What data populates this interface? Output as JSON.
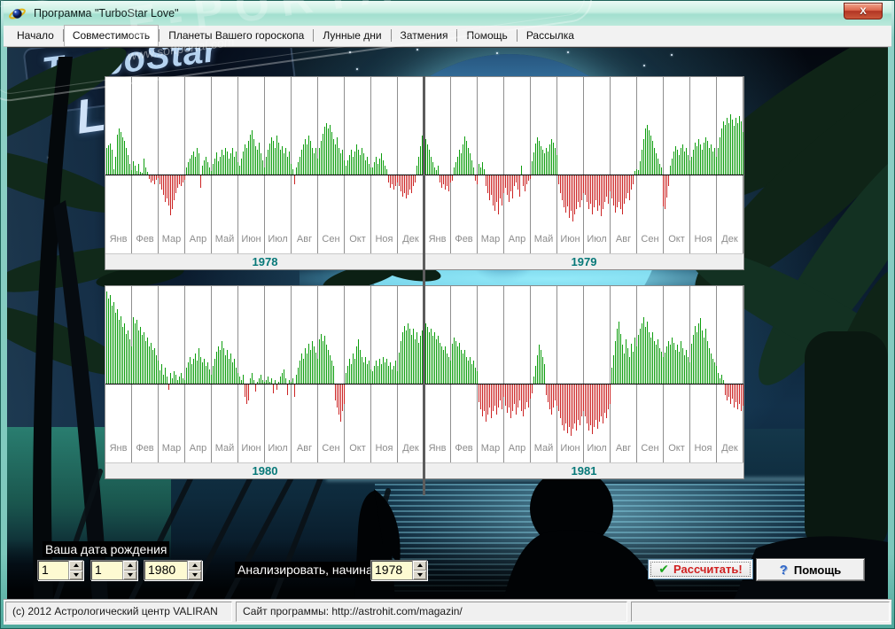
{
  "window": {
    "title": "Программа \"TurboStar Love\"",
    "close_glyph": "X"
  },
  "tabs": [
    {
      "id": "nachalo",
      "label": "Начало",
      "active": false
    },
    {
      "id": "sovmestimost",
      "label": "Совместимость",
      "active": true
    },
    {
      "id": "planety-goroskopa",
      "label": "Планеты Вашего гороскопа",
      "active": false
    },
    {
      "id": "lunnye-dni",
      "label": "Лунные дни",
      "active": false
    },
    {
      "id": "zatmeniya",
      "label": "Затмения",
      "active": false
    },
    {
      "id": "pomoshch",
      "label": "Помощь",
      "active": false
    },
    {
      "id": "rassylka",
      "label": "Рассылка",
      "active": false
    }
  ],
  "logo": {
    "line1": "TurboStar",
    "line2": "Love"
  },
  "watermark": {
    "stamp": "E-PORTAL",
    "site": "www.softportal.com"
  },
  "controls": {
    "birth_label": "Ваша дата рождения",
    "birth_day": "1",
    "birth_month": "1",
    "birth_year": "1980",
    "analyze_label": "Анализировать, начиная с",
    "analyze_year": "1978",
    "calc_button": {
      "label": "Рассчитать!",
      "icon_glyph": "✔"
    },
    "help_button": {
      "label": "Помощь",
      "icon_glyph": "?"
    }
  },
  "statusbar": {
    "left": "(c) 2012 Астрологический центр VALIRAN",
    "right": "Сайт программы:  http://astrohit.com/magazin/"
  },
  "chart_data": {
    "type": "bar",
    "description": "Daily compatibility index; green bars above baseline = positive days, red bars below = negative days. Values are bar heights in px relative to zero baseline (approx. read from pixels).",
    "months": [
      "Янв",
      "Фев",
      "Мар",
      "Апр",
      "Май",
      "Июн",
      "Июл",
      "Авг",
      "Сен",
      "Окт",
      "Ноя",
      "Дек"
    ],
    "panels": [
      [
        "1978",
        "1979"
      ],
      [
        "1980",
        "1981"
      ]
    ],
    "colors": {
      "positive": "#0e9e0e",
      "negative": "#cc2424",
      "year_label": "#067878"
    },
    "values": {
      "1978": [
        [
          30,
          33,
          35,
          28,
          6,
          20,
          45,
          52,
          48,
          42,
          38,
          30,
          22,
          12,
          5
        ],
        [
          15,
          10,
          4,
          12,
          3,
          2,
          18,
          8,
          3,
          -4,
          -8,
          -6,
          -10,
          -5,
          -3
        ],
        [
          -10,
          -16,
          -22,
          -30,
          -26,
          -34,
          -45,
          -38,
          -28,
          -20,
          -14,
          -10,
          -12,
          -8,
          -5
        ],
        [
          8,
          14,
          18,
          22,
          26,
          20,
          30,
          24,
          -14,
          10,
          16,
          20,
          14,
          8,
          4
        ],
        [
          12,
          18,
          25,
          15,
          20,
          28,
          22,
          30,
          26,
          18,
          24,
          30,
          20,
          26,
          14
        ],
        [
          10,
          18,
          26,
          34,
          30,
          38,
          45,
          50,
          40,
          32,
          28,
          36,
          24,
          16,
          8
        ],
        [
          20,
          28,
          35,
          42,
          38,
          30,
          44,
          36,
          28,
          32,
          24,
          30,
          20,
          26,
          12
        ],
        [
          6,
          -10,
          8,
          14,
          20,
          28,
          34,
          40,
          34,
          44,
          38,
          30,
          24,
          30,
          18
        ],
        [
          30,
          38,
          46,
          54,
          58,
          52,
          56,
          48,
          40,
          34,
          42,
          30,
          24,
          28,
          16
        ],
        [
          10,
          16,
          22,
          28,
          20,
          26,
          34,
          28,
          22,
          30,
          24,
          16,
          20,
          12,
          8
        ],
        [
          8,
          14,
          20,
          12,
          18,
          24,
          16,
          10,
          6,
          -8,
          -14,
          -10,
          -16,
          -12,
          -8
        ],
        [
          -12,
          -18,
          -24,
          -20,
          -26,
          -22,
          -16,
          -20,
          -12,
          -8,
          10,
          20,
          32,
          44,
          50
        ]
      ],
      "1979": [
        [
          40,
          34,
          28,
          20,
          14,
          8,
          5,
          10,
          -8,
          -14,
          -10,
          -16,
          -12,
          -18,
          -8
        ],
        [
          -6,
          8,
          14,
          20,
          28,
          24,
          34,
          43,
          38,
          30,
          24,
          16,
          8,
          -6,
          -10
        ],
        [
          12,
          8,
          14,
          6,
          -12,
          -20,
          -28,
          -22,
          -34,
          -40,
          -30,
          -44,
          -26,
          -34,
          -20
        ],
        [
          -14,
          -22,
          -30,
          -18,
          -26,
          -12,
          -8,
          -16,
          -24,
          10,
          -12,
          -18,
          -10,
          -6,
          -4
        ],
        [
          15,
          25,
          35,
          42,
          38,
          32,
          28,
          24,
          30,
          26,
          34,
          40,
          36,
          30,
          22
        ],
        [
          -10,
          -20,
          -28,
          -36,
          -42,
          -35,
          -48,
          -40,
          -52,
          -44,
          -38,
          -30,
          -36,
          -28,
          -20
        ],
        [
          -22,
          -30,
          -38,
          -32,
          -44,
          -36,
          -28,
          -40,
          -34,
          -46,
          -38,
          -30,
          -24,
          -32,
          -18
        ],
        [
          -26,
          -34,
          -42,
          -36,
          -30,
          -38,
          -44,
          -32,
          -26,
          -20,
          -28,
          -16,
          -10,
          4,
          6
        ],
        [
          5,
          15,
          28,
          40,
          52,
          56,
          50,
          44,
          38,
          30,
          24,
          18,
          12,
          8,
          -35
        ],
        [
          -38,
          -25,
          -12,
          10,
          18,
          26,
          32,
          28,
          22,
          30,
          34,
          26,
          30,
          22,
          16
        ],
        [
          20,
          28,
          36,
          32,
          40,
          34,
          28,
          36,
          42,
          38,
          30,
          34,
          26,
          30,
          20
        ],
        [
          30,
          42,
          52,
          60,
          56,
          64,
          58,
          68,
          62,
          55,
          64,
          58,
          66,
          60,
          48
        ]
      ],
      "1980": [
        [
          104,
          96,
          100,
          88,
          92,
          80,
          84,
          72,
          76,
          64,
          68,
          56,
          60,
          50,
          42
        ],
        [
          75,
          68,
          72,
          60,
          64,
          55,
          58,
          48,
          52,
          42,
          46,
          38,
          40,
          32,
          26
        ],
        [
          15,
          22,
          10,
          18,
          8,
          -6,
          12,
          6,
          14,
          10,
          4,
          8,
          12,
          6,
          4
        ],
        [
          18,
          24,
          30,
          22,
          28,
          34,
          26,
          40,
          30,
          24,
          28,
          20,
          24,
          16,
          10
        ],
        [
          20,
          28,
          36,
          42,
          38,
          48,
          40,
          32,
          38,
          28,
          34,
          24,
          28,
          18,
          12
        ],
        [
          8,
          4,
          10,
          -14,
          -22,
          -18,
          6,
          12,
          4,
          -8,
          2,
          6,
          10,
          4,
          2
        ],
        [
          4,
          8,
          2,
          6,
          -10,
          4,
          -6,
          2,
          8,
          12,
          16,
          6,
          -12,
          4,
          2
        ],
        [
          6,
          -14,
          10,
          18,
          26,
          34,
          28,
          40,
          34,
          45,
          38,
          48,
          42,
          35,
          28
        ],
        [
          50,
          56,
          48,
          54,
          44,
          38,
          32,
          26,
          20,
          -18,
          -26,
          -34,
          -42,
          -30,
          -22
        ],
        [
          12,
          20,
          28,
          22,
          34,
          28,
          42,
          50,
          38,
          30,
          24,
          30,
          22,
          26,
          16
        ],
        [
          14,
          20,
          26,
          20,
          28,
          22,
          30,
          24,
          28,
          20,
          24,
          16,
          20,
          26,
          14
        ],
        [
          35,
          48,
          58,
          65,
          60,
          68,
          62,
          55,
          62,
          50,
          58,
          46,
          54,
          60,
          68
        ]
      ],
      "1981": [
        [
          68,
          64,
          58,
          62,
          54,
          58,
          50,
          54,
          46,
          42,
          38,
          42,
          34,
          30,
          26
        ],
        [
          45,
          52,
          48,
          42,
          46,
          38,
          34,
          38,
          30,
          26,
          30,
          22,
          26,
          18,
          14
        ],
        [
          -20,
          -28,
          -36,
          -30,
          -42,
          -34,
          -26,
          -38,
          -30,
          -24,
          -34,
          -26,
          -18,
          -28,
          -14
        ],
        [
          -24,
          -32,
          -26,
          -38,
          -30,
          -22,
          -34,
          -26,
          -18,
          -30,
          -36,
          -28,
          -20,
          -26,
          -16
        ],
        [
          -10,
          8,
          20,
          32,
          44,
          38,
          30,
          22,
          -12,
          -20,
          -28,
          -34,
          -26,
          -18,
          -24
        ],
        [
          -30,
          -38,
          -46,
          -52,
          -44,
          -55,
          -48,
          -58,
          -50,
          -44,
          -52,
          -40,
          -46,
          -36,
          -30
        ],
        [
          -36,
          -44,
          -52,
          -46,
          -56,
          -48,
          -40,
          -50,
          -42,
          -36,
          -44,
          -32,
          -38,
          -28,
          -22
        ],
        [
          18,
          32,
          48,
          62,
          70,
          56,
          44,
          34,
          50,
          40,
          30,
          45,
          36,
          52,
          42
        ],
        [
          55,
          62,
          68,
          75,
          64,
          70,
          58,
          52,
          58,
          48,
          44,
          50,
          40,
          36,
          30
        ],
        [
          35,
          42,
          48,
          44,
          52,
          46,
          38,
          44,
          36,
          48,
          40,
          32,
          38,
          30,
          24
        ],
        [
          45,
          55,
          65,
          58,
          68,
          74,
          60,
          52,
          62,
          48,
          40,
          34,
          28,
          24,
          20
        ],
        [
          12,
          6,
          10,
          4,
          -12,
          -18,
          -14,
          -22,
          -16,
          -26,
          -20,
          -28,
          -22,
          -30,
          -24
        ]
      ]
    }
  }
}
